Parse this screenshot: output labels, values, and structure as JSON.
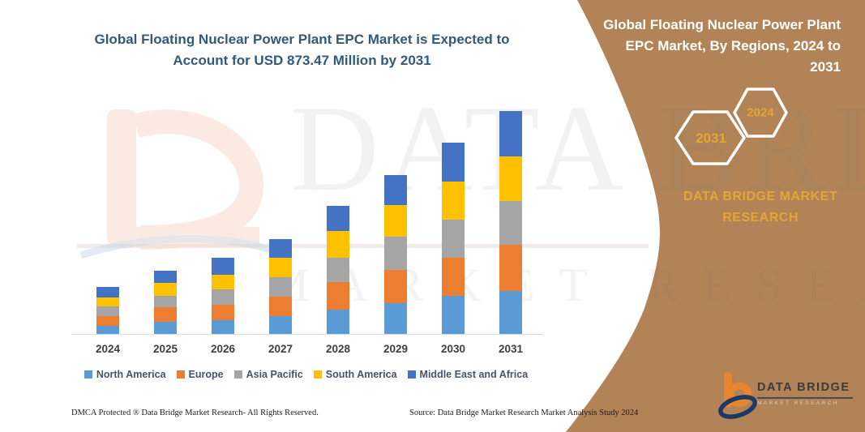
{
  "header": {
    "title_lines": [
      "Global Floating Nuclear Power Plant EPC Market is Expected to",
      "Account for USD 873.47 Million by 2031"
    ]
  },
  "side_panel": {
    "title": "Global Floating Nuclear Power Plant EPC Market, By Regions, 2024 to 2031",
    "hexagon_large_label": "2031",
    "hexagon_small_label": "2024",
    "brand_caption": "DATA BRIDGE MARKET RESEARCH",
    "background_color": "#B28357",
    "accent_text_color": "#E2A733"
  },
  "watermark": {
    "line1": "DATA BRIDGE",
    "line2": "MARKET RESEARCH"
  },
  "brand_logo": {
    "name": "DATA BRIDGE",
    "subtext": "MARKET RESEARCH"
  },
  "footer": {
    "left": "DMCA Protected ® Data Bridge Market Research-  All Rights Reserved.",
    "right": "Source: Data Bridge Market Research  Market Analysis Study 2024"
  },
  "chart_data": {
    "type": "bar",
    "stacked": true,
    "title": "Global Floating Nuclear Power Plant EPC Market is Expected to Account for USD 873.47 Million by 2031",
    "unit": "USD Million",
    "categories": [
      "2024",
      "2025",
      "2026",
      "2027",
      "2028",
      "2029",
      "2030",
      "2031"
    ],
    "series": [
      {
        "name": "North America",
        "color": "#5B9BD5",
        "values": [
          32,
          48,
          53,
          71,
          95,
          121,
          148,
          169.3
        ]
      },
      {
        "name": "Europe",
        "color": "#ED7D31",
        "values": [
          39,
          56,
          60,
          76,
          108,
          130,
          150,
          180.1
        ]
      },
      {
        "name": "Asia Pacific",
        "color": "#A5A5A5",
        "values": [
          37,
          44,
          61,
          77,
          95,
          130,
          150,
          171.5
        ]
      },
      {
        "name": "South America",
        "color": "#FFC000",
        "values": [
          35,
          51,
          58,
          76,
          106,
          124,
          151,
          174.7
        ]
      },
      {
        "name": "Middle East and Africa",
        "color": "#4472C4",
        "values": [
          43,
          48,
          68,
          72,
          98,
          118,
          151,
          177.9
        ]
      }
    ],
    "totals_estimated": [
      186,
      247,
      300,
      372,
      502,
      623,
      750,
      873.47
    ],
    "legend_position": "bottom",
    "y_axis_visible": false,
    "gridlines": false
  }
}
